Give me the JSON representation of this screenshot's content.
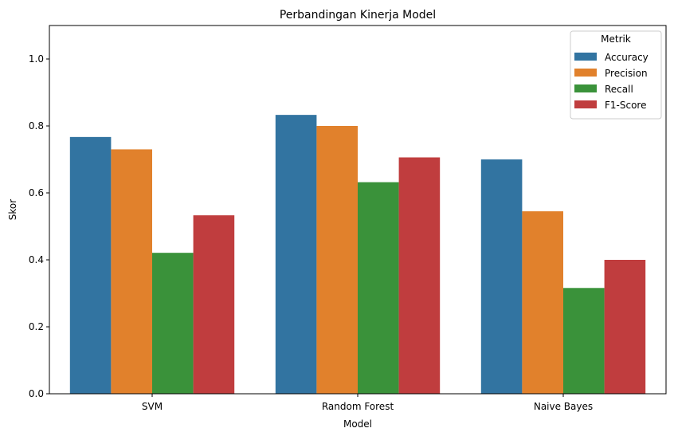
{
  "chart_data": {
    "type": "bar",
    "title": "Perbandingan Kinerja Model",
    "xlabel": "Model",
    "ylabel": "Skor",
    "ylim": [
      0,
      1.1
    ],
    "yticks": [
      "0.0",
      "0.2",
      "0.4",
      "0.6",
      "0.8",
      "1.0"
    ],
    "categories": [
      "SVM",
      "Random Forest",
      "Naive Bayes"
    ],
    "legend_title": "Metrik",
    "legend_position": "top-right",
    "grid": false,
    "series": [
      {
        "name": "Accuracy",
        "color": "#3274a1",
        "values": [
          0.767,
          0.833,
          0.7
        ]
      },
      {
        "name": "Precision",
        "color": "#e1812c",
        "values": [
          0.73,
          0.8,
          0.545
        ]
      },
      {
        "name": "Recall",
        "color": "#3a923a",
        "values": [
          0.421,
          0.632,
          0.316
        ]
      },
      {
        "name": "F1-Score",
        "color": "#c03d3e",
        "values": [
          0.533,
          0.706,
          0.4
        ]
      }
    ]
  }
}
